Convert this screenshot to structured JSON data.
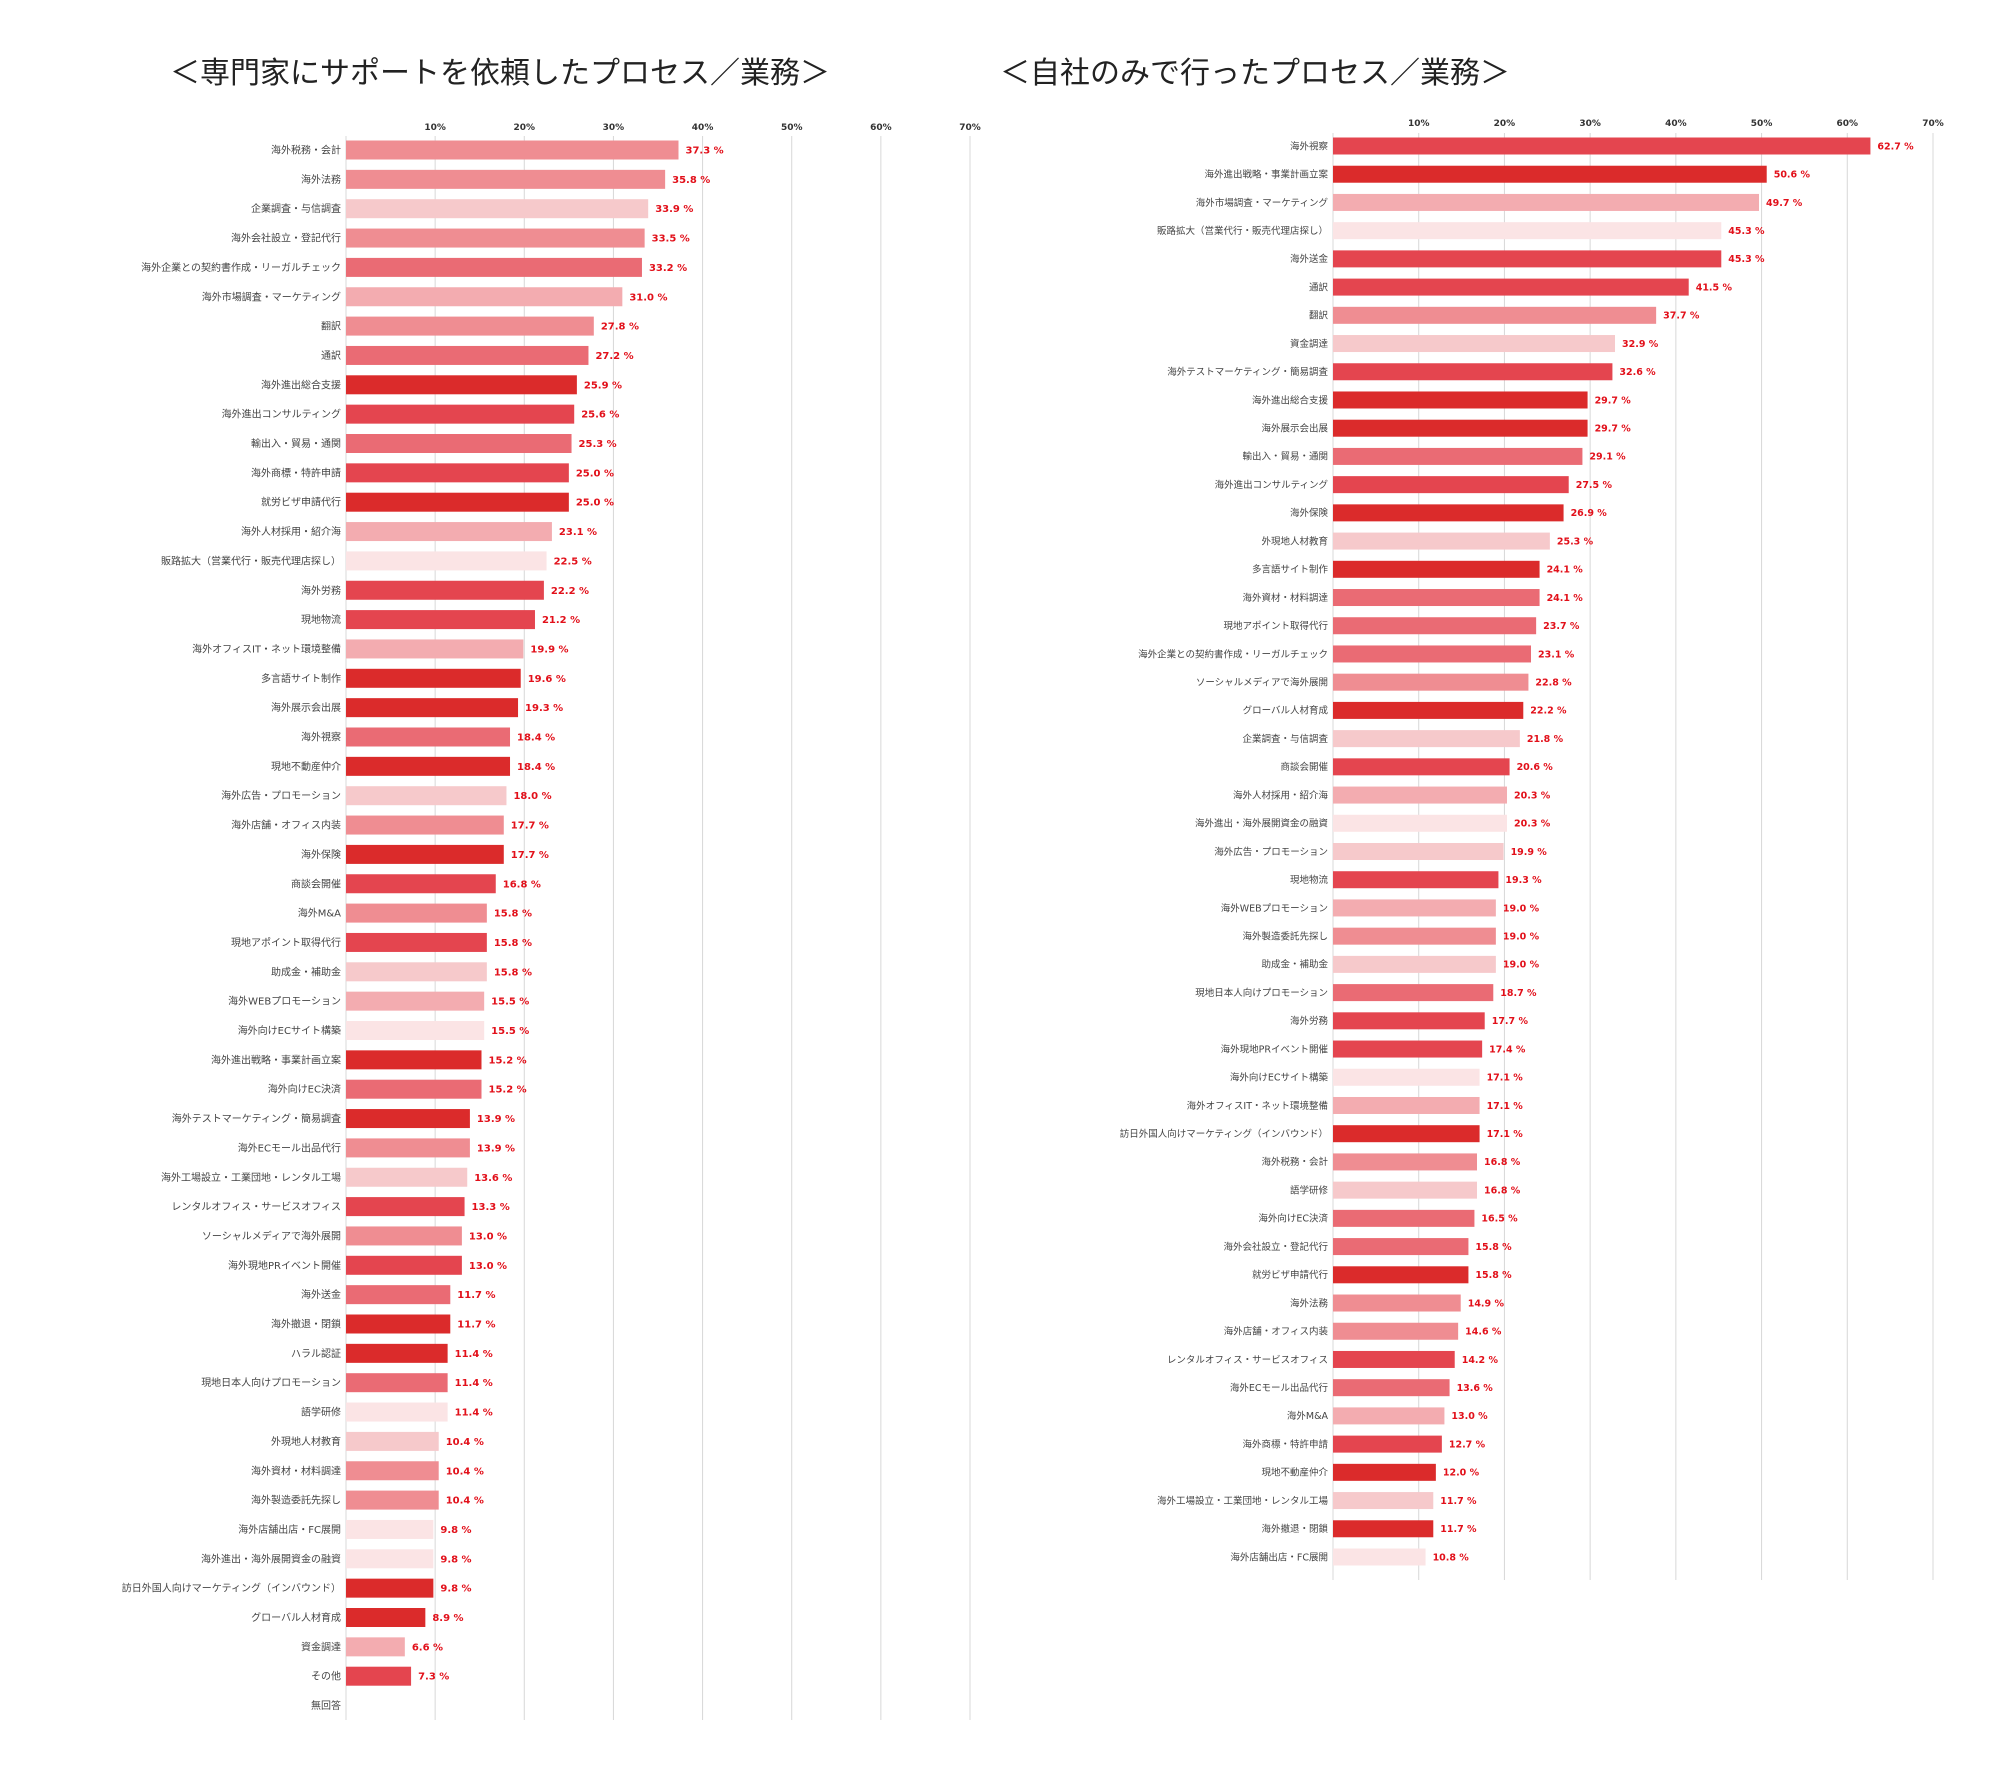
{
  "colors": {
    "c1": "#db2b2b",
    "c2": "#e4454f",
    "c3": "#ea6b74",
    "c4": "#ef8d92",
    "c5": "#f3acb0",
    "c6": "#f6c9cb",
    "c7": "#fbe4e5",
    "value_label": "#e2101a",
    "grid": "#d8d8d8"
  },
  "chart_data": [
    {
      "type": "bar",
      "orientation": "horizontal",
      "title": "＜専門家にサポートを依頼したプロセス／業務＞",
      "xlim": [
        0,
        70
      ],
      "x_ticks": [
        "10%",
        "20%",
        "30%",
        "40%",
        "50%",
        "60%",
        "70%"
      ],
      "value_suffix": " %",
      "categories": [
        "海外税務・会計",
        "海外法務",
        "企業調査・与信調査",
        "海外会社設立・登記代行",
        "海外企業との契約書作成・リーガルチェック",
        "海外市場調査・マーケティング",
        "翻訳",
        "通訳",
        "海外進出総合支援",
        "海外進出コンサルティング",
        "輸出入・貿易・通関",
        "海外商標・特許申請",
        "就労ビザ申請代行",
        "海外人材採用・紹介海",
        "販路拡大（営業代行・販売代理店探し）",
        "海外労務",
        "現地物流",
        "海外オフィスIT・ネット環境整備",
        "多言語サイト制作",
        "海外展示会出展",
        "海外視察",
        "現地不動産仲介",
        "海外広告・プロモーション",
        "海外店舗・オフィス内装",
        "海外保険",
        "商談会開催",
        "海外M&A",
        "現地アポイント取得代行",
        "助成金・補助金",
        "海外WEBプロモーション",
        "海外向けECサイト構築",
        "海外進出戦略・事業計画立案",
        "海外向けEC決済",
        "海外テストマーケティング・簡易調査",
        "海外ECモール出品代行",
        "海外工場設立・工業団地・レンタル工場",
        "レンタルオフィス・サービスオフィス",
        "ソーシャルメディアで海外展開",
        "海外現地PRイベント開催",
        "海外送金",
        "海外撤退・閉鎖",
        "ハラル認証",
        "現地日本人向けプロモーション",
        "語学研修",
        "外現地人材教育",
        "海外資材・材料調達",
        "海外製造委託先探し",
        "海外店舗出店・FC展開",
        "海外進出・海外展開資金の融資",
        "訪日外国人向けマーケティング（インバウンド）",
        "グローバル人材育成",
        "資金調達",
        "その他",
        "無回答"
      ],
      "values": [
        37.3,
        35.8,
        33.9,
        33.5,
        33.2,
        31.0,
        27.8,
        27.2,
        25.9,
        25.6,
        25.3,
        25.0,
        25.0,
        23.1,
        22.5,
        22.2,
        21.2,
        19.9,
        19.6,
        19.3,
        18.4,
        18.4,
        18.0,
        17.7,
        17.7,
        16.8,
        15.8,
        15.8,
        15.8,
        15.5,
        15.5,
        15.2,
        15.2,
        13.9,
        13.9,
        13.6,
        13.3,
        13.0,
        13.0,
        11.7,
        11.7,
        11.4,
        11.4,
        11.4,
        10.4,
        10.4,
        10.4,
        9.8,
        9.8,
        9.8,
        8.9,
        6.6,
        7.3,
        null
      ],
      "value_labels": [
        "37.3 %",
        "35.8 %",
        "33.9 %",
        "33.5 %",
        "33.2 %",
        "31.0 %",
        "27.8 %",
        "27.2 %",
        "25.9 %",
        "25.6 %",
        "25.3 %",
        "25.0 %",
        "25.0 %",
        "23.1 %",
        "22.5 %",
        "22.2 %",
        "21.2 %",
        "19.9 %",
        "19.6 %",
        "19.3 %",
        "18.4 %",
        "18.4 %",
        "18.0 %",
        "17.7 %",
        "17.7 %",
        "16.8 %",
        "15.8 %",
        "15.8 %",
        "15.8 %",
        "15.5 %",
        "15.5 %",
        "15.2 %",
        "15.2 %",
        "13.9 %",
        "13.9 %",
        "13.6 %",
        "13.3 %",
        "13.0 %",
        "13.0 %",
        "11.7 %",
        "11.7 %",
        "11.4 %",
        "11.4 %",
        "11.4 %",
        "10.4 %",
        "10.4 %",
        "10.4 %",
        "9.8 %",
        "9.8 %",
        "9.8 %",
        "8.9 %",
        "6.6 %",
        "7.3 %",
        ""
      ],
      "bar_colors": [
        "c4",
        "c4",
        "c6",
        "c4",
        "c3",
        "c5",
        "c4",
        "c3",
        "c1",
        "c2",
        "c3",
        "c2",
        "c1",
        "c5",
        "c7",
        "c2",
        "c2",
        "c5",
        "c1",
        "c1",
        "c3",
        "c1",
        "c6",
        "c4",
        "c1",
        "c2",
        "c4",
        "c2",
        "c6",
        "c5",
        "c7",
        "c1",
        "c3",
        "c1",
        "c4",
        "c6",
        "c2",
        "c4",
        "c2",
        "c3",
        "c1",
        "c1",
        "c3",
        "c7",
        "c6",
        "c4",
        "c4",
        "c7",
        "c7",
        "c1",
        "c1",
        "c5",
        "c2",
        "c7"
      ],
      "grid": true
    },
    {
      "type": "bar",
      "orientation": "horizontal",
      "title": "＜自社のみで行ったプロセス／業務＞",
      "xlim": [
        0,
        70
      ],
      "x_ticks": [
        "10%",
        "20%",
        "30%",
        "40%",
        "50%",
        "60%",
        "70%"
      ],
      "value_suffix": " %",
      "categories": [
        "海外視察",
        "海外進出戦略・事業計画立案",
        "海外市場調査・マーケティング",
        "販路拡大（営業代行・販売代理店探し）",
        "海外送金",
        "通訳",
        "翻訳",
        "資金調達",
        "海外テストマーケティング・簡易調査",
        "海外進出総合支援",
        "海外展示会出展",
        "輸出入・貿易・通関",
        "海外進出コンサルティング",
        "海外保険",
        "外現地人材教育",
        "多言語サイト制作",
        "海外資材・材料調達",
        "現地アポイント取得代行",
        "海外企業との契約書作成・リーガルチェック",
        "ソーシャルメディアで海外展開",
        "グローバル人材育成",
        "企業調査・与信調査",
        "商談会開催",
        "海外人材採用・紹介海",
        "海外進出・海外展開資金の融資",
        "海外広告・プロモーション",
        "現地物流",
        "海外WEBプロモーション",
        "海外製造委託先探し",
        "助成金・補助金",
        "現地日本人向けプロモーション",
        "海外労務",
        "海外現地PRイベント開催",
        "海外向けECサイト構築",
        "海外オフィスIT・ネット環境整備",
        "訪日外国人向けマーケティング（インバウンド）",
        "海外税務・会計",
        "語学研修",
        "海外向けEC決済",
        "海外会社設立・登記代行",
        "就労ビザ申請代行",
        "海外法務",
        "海外店舗・オフィス内装",
        "レンタルオフィス・サービスオフィス",
        "海外ECモール出品代行",
        "海外M&A",
        "海外商標・特許申請",
        "現地不動産仲介",
        "海外工場設立・工業団地・レンタル工場",
        "海外撤退・閉鎖",
        "海外店舗出店・FC展開"
      ],
      "values": [
        62.7,
        50.6,
        49.7,
        45.3,
        45.3,
        41.5,
        37.7,
        32.9,
        32.6,
        29.7,
        29.7,
        29.1,
        27.5,
        26.9,
        25.3,
        24.1,
        24.1,
        23.7,
        23.1,
        22.8,
        22.2,
        21.8,
        20.6,
        20.3,
        20.3,
        19.9,
        19.3,
        19.0,
        19.0,
        19.0,
        18.7,
        17.7,
        17.4,
        17.1,
        17.1,
        17.1,
        16.8,
        16.8,
        16.5,
        15.8,
        15.8,
        14.9,
        14.6,
        14.2,
        13.6,
        13.0,
        12.7,
        12.0,
        11.7,
        11.7,
        10.8
      ],
      "value_labels": [
        "62.7 %",
        "50.6 %",
        "49.7 %",
        "45.3 %",
        "45.3 %",
        "41.5 %",
        "37.7 %",
        "32.9 %",
        "32.6 %",
        "29.7 %",
        "29.7 %",
        "29.1 %",
        "27.5 %",
        "26.9 %",
        "25.3 %",
        "24.1 %",
        "24.1 %",
        "23.7 %",
        "23.1 %",
        "22.8 %",
        "22.2 %",
        "21.8 %",
        "20.6 %",
        "20.3 %",
        "20.3 %",
        "19.9 %",
        "19.3 %",
        "19.0 %",
        "19.0 %",
        "19.0 %",
        "18.7 %",
        "17.7 %",
        "17.4 %",
        "17.1 %",
        "17.1 %",
        "17.1 %",
        "16.8 %",
        "16.8 %",
        "16.5 %",
        "15.8 %",
        "15.8 %",
        "14.9 %",
        "14.6 %",
        "14.2 %",
        "13.6 %",
        "13.0 %",
        "12.7 %",
        "12.0 %",
        "11.7 %",
        "11.7 %",
        "10.8 %"
      ],
      "bar_colors": [
        "c2",
        "c1",
        "c5",
        "c7",
        "c2",
        "c2",
        "c4",
        "c6",
        "c2",
        "c1",
        "c1",
        "c3",
        "c2",
        "c1",
        "c6",
        "c1",
        "c3",
        "c3",
        "c3",
        "c4",
        "c1",
        "c6",
        "c2",
        "c5",
        "c7",
        "c6",
        "c2",
        "c5",
        "c4",
        "c6",
        "c3",
        "c2",
        "c2",
        "c7",
        "c5",
        "c1",
        "c4",
        "c6",
        "c3",
        "c3",
        "c1",
        "c4",
        "c4",
        "c2",
        "c3",
        "c5",
        "c2",
        "c1",
        "c6",
        "c1",
        "c7"
      ],
      "grid": true
    }
  ]
}
